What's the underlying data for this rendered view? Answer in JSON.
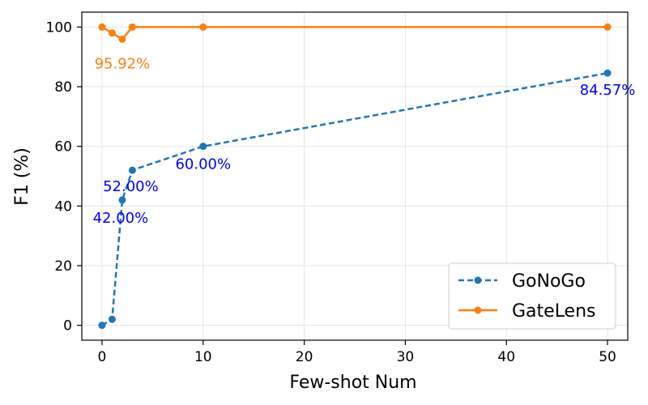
{
  "chart_data": {
    "type": "line",
    "xlabel": "Few-shot Num",
    "ylabel": "F1 (%)",
    "xlim": [
      -2,
      52
    ],
    "ylim": [
      -5,
      105
    ],
    "xticks": [
      "0",
      "10",
      "20",
      "30",
      "40",
      "50"
    ],
    "yticks": [
      "0",
      "20",
      "40",
      "60",
      "80",
      "100"
    ],
    "grid": true,
    "legend_position": "lower-right",
    "series": [
      {
        "name": "GoNoGo",
        "color": "#1f77b4",
        "line_style": "dashed",
        "x": [
          0,
          1,
          2,
          3,
          10,
          50
        ],
        "y": [
          0,
          2,
          42,
          52,
          60,
          84.57
        ]
      },
      {
        "name": "GateLens",
        "color": "#ff7f0e",
        "line_style": "solid",
        "x": [
          0,
          1,
          2,
          3,
          10,
          50
        ],
        "y": [
          100,
          98,
          95.92,
          100,
          100,
          100
        ]
      }
    ],
    "annotations": [
      {
        "text": "95.92%",
        "x": 2,
        "y": 95.92,
        "color": "#ff7f0e"
      },
      {
        "text": "52.00%",
        "x": 3,
        "y": 52,
        "color": "#0000ee"
      },
      {
        "text": "42.00%",
        "x": 2,
        "y": 42,
        "color": "#0000ee"
      },
      {
        "text": "60.00%",
        "x": 10,
        "y": 60,
        "color": "#0000ee"
      },
      {
        "text": "84.57%",
        "x": 50,
        "y": 84.57,
        "color": "#0000ee"
      }
    ]
  }
}
